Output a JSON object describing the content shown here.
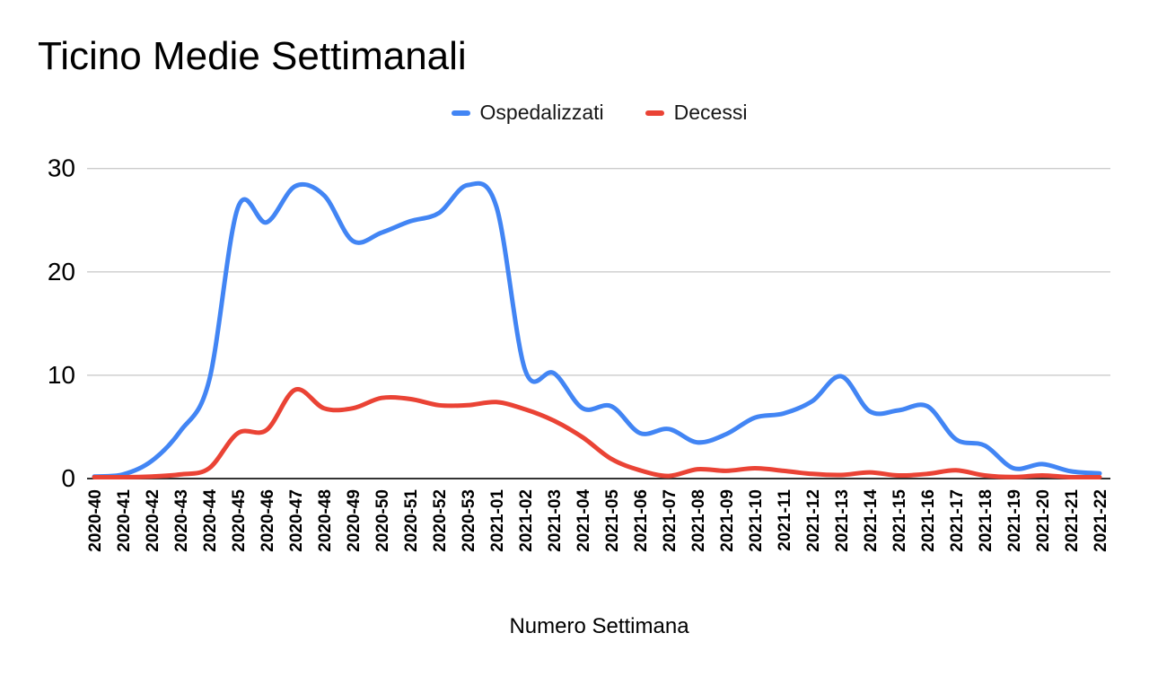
{
  "chart_data": {
    "type": "line",
    "title": "Ticino Medie Settimanali",
    "xlabel": "Numero Settimana",
    "ylabel": "",
    "ylim": [
      0,
      30
    ],
    "yticks": [
      0,
      10,
      20,
      30
    ],
    "smooth": true,
    "grid": true,
    "legend_position": "top-center",
    "categories": [
      "2020-40",
      "2020-41",
      "2020-42",
      "2020-43",
      "2020-44",
      "2020-45",
      "2020-46",
      "2020-47",
      "2020-48",
      "2020-49",
      "2020-50",
      "2020-51",
      "2020-52",
      "2020-53",
      "2021-01",
      "2021-02",
      "2021-03",
      "2021-04",
      "2021-05",
      "2021-06",
      "2021-07",
      "2021-08",
      "2021-09",
      "2021-10",
      "2021-11",
      "2021-12",
      "2021-13",
      "2021-14",
      "2021-15",
      "2021-16",
      "2021-17",
      "2021-18",
      "2021-19",
      "2021-20",
      "2021-21",
      "2021-22"
    ],
    "series": [
      {
        "name": "Ospedalizzati",
        "color": "#4285F4",
        "values": [
          0.2,
          0.4,
          1.7,
          4.6,
          9.5,
          26.2,
          24.8,
          28.3,
          27.4,
          23.0,
          23.8,
          24.9,
          25.7,
          28.4,
          26.3,
          10.5,
          10.2,
          6.8,
          7.0,
          4.4,
          4.8,
          3.5,
          4.3,
          5.9,
          6.3,
          7.5,
          9.9,
          6.5,
          6.6,
          7.0,
          3.8,
          3.2,
          1.0,
          1.4,
          0.7,
          0.5
        ]
      },
      {
        "name": "Decessi",
        "color": "#EA4335",
        "values": [
          0.1,
          0.1,
          0.2,
          0.4,
          1.0,
          4.4,
          4.7,
          8.6,
          6.8,
          6.8,
          7.8,
          7.7,
          7.1,
          7.1,
          7.4,
          6.7,
          5.6,
          4.0,
          1.9,
          0.8,
          0.25,
          0.9,
          0.75,
          1.0,
          0.75,
          0.45,
          0.35,
          0.6,
          0.3,
          0.45,
          0.8,
          0.3,
          0.15,
          0.3,
          0.1,
          0.1
        ]
      }
    ],
    "colors": {
      "gridline": "#cccccc",
      "axis_line": "#333333",
      "text": "#000000",
      "background": "#ffffff"
    }
  }
}
